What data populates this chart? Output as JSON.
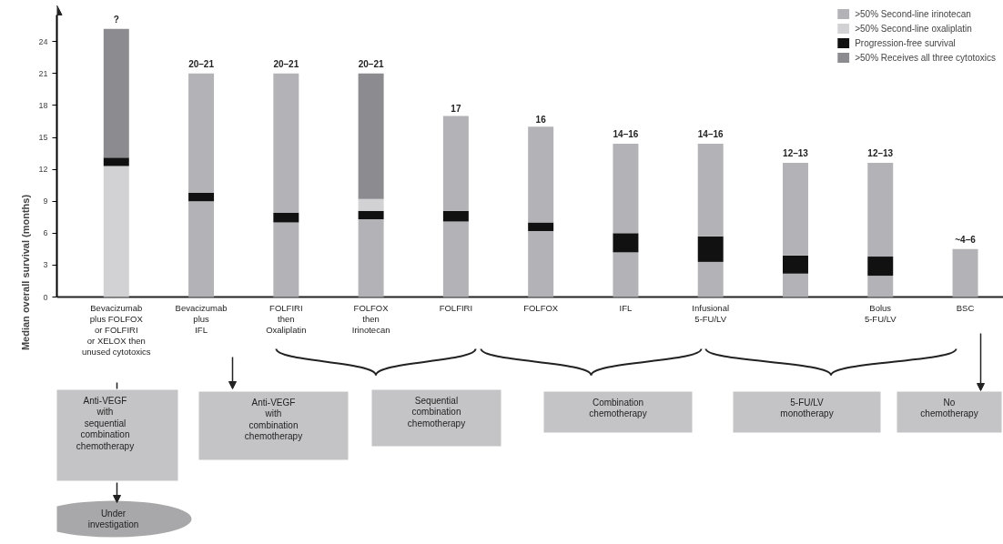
{
  "chart_data": {
    "type": "bar",
    "ylabel": "Median overall survival (months)",
    "stacked": true,
    "categories": [
      "Bevacizumab\nplus FOLFOX\nor FOLFIRI\nor XELOX then\nunused cytotoxics",
      "Bevacizumab\nplus\nIFL",
      "FOLFIRI\nthen\nOxaliplatin",
      "FOLFOX\nthen\nIrinotecan",
      "FOLFIRI",
      "FOLFOX",
      "IFL",
      "Infusional\n5-FU/LV",
      null,
      "Bolus\n5-FU/LV",
      "BSC"
    ],
    "series": [
      {
        "name": ">50% Second-line irinotecan",
        "color": "#b3b3b7",
        "values": [
          null,
          9.0,
          7.0,
          7.3,
          7.1,
          6.2,
          4.2,
          3.3,
          2.2,
          2.0,
          4.5
        ]
      },
      {
        "name": ">50% Second-line oxaliplatin",
        "color": "#d2d2d4",
        "values": [
          12.3,
          null,
          null,
          null,
          null,
          null,
          null,
          null,
          null,
          null,
          null
        ]
      },
      {
        "name": "Progression-free survival",
        "color": "#111111",
        "values": [
          0.8,
          0.8,
          0.9,
          0.8,
          1.0,
          0.8,
          1.8,
          2.4,
          1.7,
          1.8,
          null
        ]
      },
      {
        "color": "#d2d2d4",
        "values": [
          null,
          null,
          null,
          1.1,
          null,
          null,
          null,
          null,
          null,
          null,
          null
        ]
      },
      {
        "color": "#b3b3b7",
        "values": [
          null,
          11.2,
          13.1,
          null,
          8.9,
          9.0,
          8.4,
          8.7,
          8.7,
          8.8,
          null
        ]
      },
      {
        "name": ">50% Receives all three cytotoxics",
        "color": "#8c8c90",
        "values": [
          12.1,
          null,
          null,
          11.8,
          null,
          null,
          null,
          null,
          null,
          null,
          null
        ]
      }
    ],
    "totals": [
      "?",
      "20–21",
      "20–21",
      "20–21",
      "17",
      "16",
      "14–16",
      "14–16",
      "12–13",
      "12–13",
      "~4–6"
    ],
    "ylim": [
      0,
      26.5
    ],
    "yticks": [
      0,
      3,
      6,
      9,
      12,
      15,
      18,
      21,
      24
    ],
    "legend": "top right",
    "grid": false,
    "annotations": [
      "Anti-VEGF\nwith\nsequential\ncombination\nchemotherapy",
      "Anti-VEGF\nwith\ncombination\nchemotherapy",
      "Sequential\ncombination\nchemotherapy",
      "Combination\nchemotherapy",
      "5-FU/LV\nmonotherapy",
      "No\nchemotherapy",
      "Under\ninvestigation"
    ]
  }
}
